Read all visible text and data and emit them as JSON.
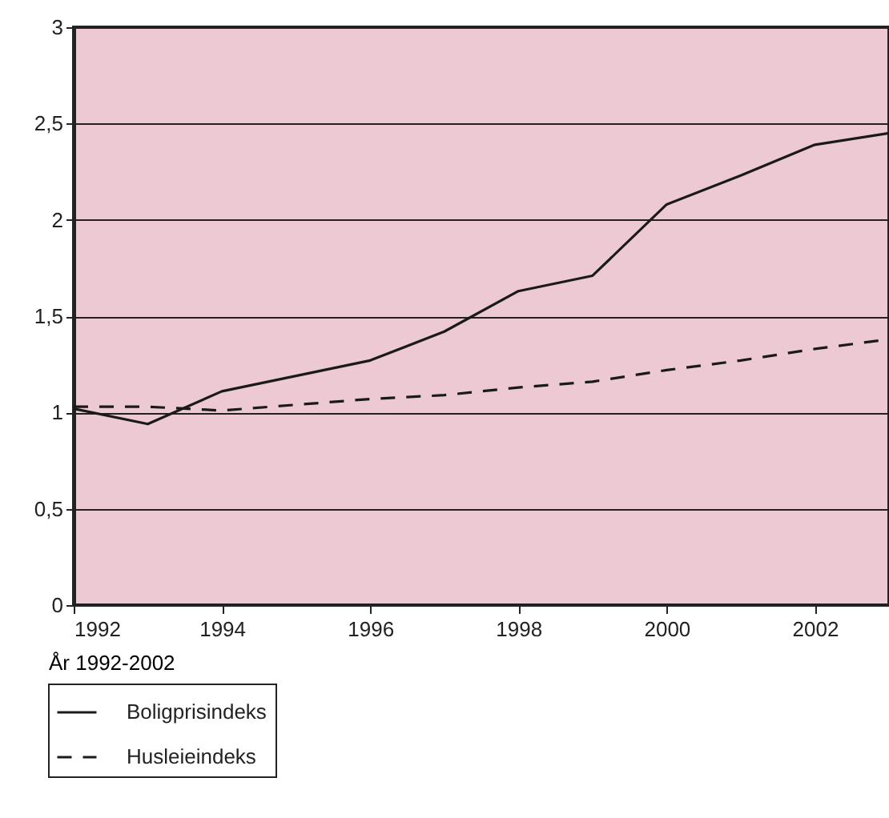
{
  "chart_data": {
    "type": "line",
    "xlabel": "År 1992-2002",
    "x": [
      1992,
      1993,
      1994,
      1995,
      1996,
      1997,
      1998,
      1999,
      2000,
      2001,
      2002,
      2003
    ],
    "series": [
      {
        "name": "Boligprisindeks",
        "color": "#1a1a1a",
        "line_style": "solid",
        "values": [
          1.02,
          0.94,
          1.11,
          1.19,
          1.27,
          1.42,
          1.63,
          1.71,
          2.08,
          2.23,
          2.39,
          2.45
        ]
      },
      {
        "name": "Husleieindeks",
        "color": "#1a1a1a",
        "line_style": "dashed",
        "values": [
          1.03,
          1.03,
          1.01,
          1.04,
          1.07,
          1.09,
          1.13,
          1.16,
          1.22,
          1.27,
          1.33,
          1.38
        ]
      }
    ],
    "xlim": [
      1992,
      2003
    ],
    "xticks": [
      1992,
      1994,
      1996,
      1998,
      2000,
      2002
    ],
    "ylim": [
      0,
      3
    ],
    "yticks": [
      0,
      {
        "value": 0.5,
        "label": "0,5"
      },
      1,
      {
        "value": 1.5,
        "label": "1,5"
      },
      2,
      {
        "value": 2.5,
        "label": "2,5"
      },
      3
    ],
    "grid": "y",
    "legend": "bottom left",
    "marker": "none"
  }
}
